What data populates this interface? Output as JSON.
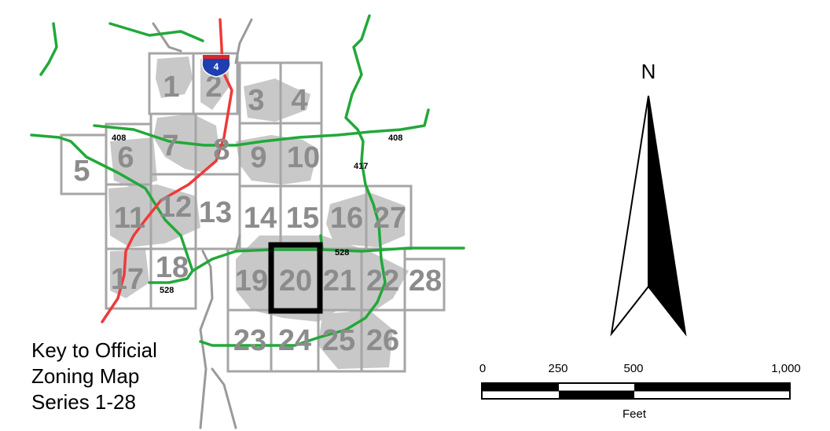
{
  "map": {
    "grid_cells": [
      {
        "num": "1"
      },
      {
        "num": "2"
      },
      {
        "num": "3"
      },
      {
        "num": "4"
      },
      {
        "num": "5"
      },
      {
        "num": "6"
      },
      {
        "num": "7"
      },
      {
        "num": "8"
      },
      {
        "num": "9"
      },
      {
        "num": "10"
      },
      {
        "num": "11"
      },
      {
        "num": "12"
      },
      {
        "num": "13"
      },
      {
        "num": "14"
      },
      {
        "num": "15"
      },
      {
        "num": "16"
      },
      {
        "num": "27"
      },
      {
        "num": "17"
      },
      {
        "num": "18"
      },
      {
        "num": "19"
      },
      {
        "num": "20"
      },
      {
        "num": "21"
      },
      {
        "num": "22"
      },
      {
        "num": "28"
      },
      {
        "num": "23"
      },
      {
        "num": "24"
      },
      {
        "num": "25"
      },
      {
        "num": "26"
      }
    ],
    "highlighted_cell": "20",
    "road_labels": {
      "r408_west": "408",
      "r408_east": "408",
      "r417": "417",
      "r528_east": "528",
      "r528_west": "528"
    },
    "interstate_shield": "4"
  },
  "key_title": {
    "line1": "Key to Official",
    "line2": "Zoning Map",
    "line3": "Series 1-28"
  },
  "north_arrow": {
    "label": "N"
  },
  "scale_bar": {
    "ticks": [
      "0",
      "250",
      "500",
      "1,000"
    ],
    "unit": "Feet"
  },
  "colors": {
    "major_road": "#22a83a",
    "interstate": "#ee3a3a",
    "minor_road": "#9a9a9a",
    "grid": "#a6a6a6",
    "urban_area": "#c8c8c8",
    "highlight": "#000000"
  }
}
